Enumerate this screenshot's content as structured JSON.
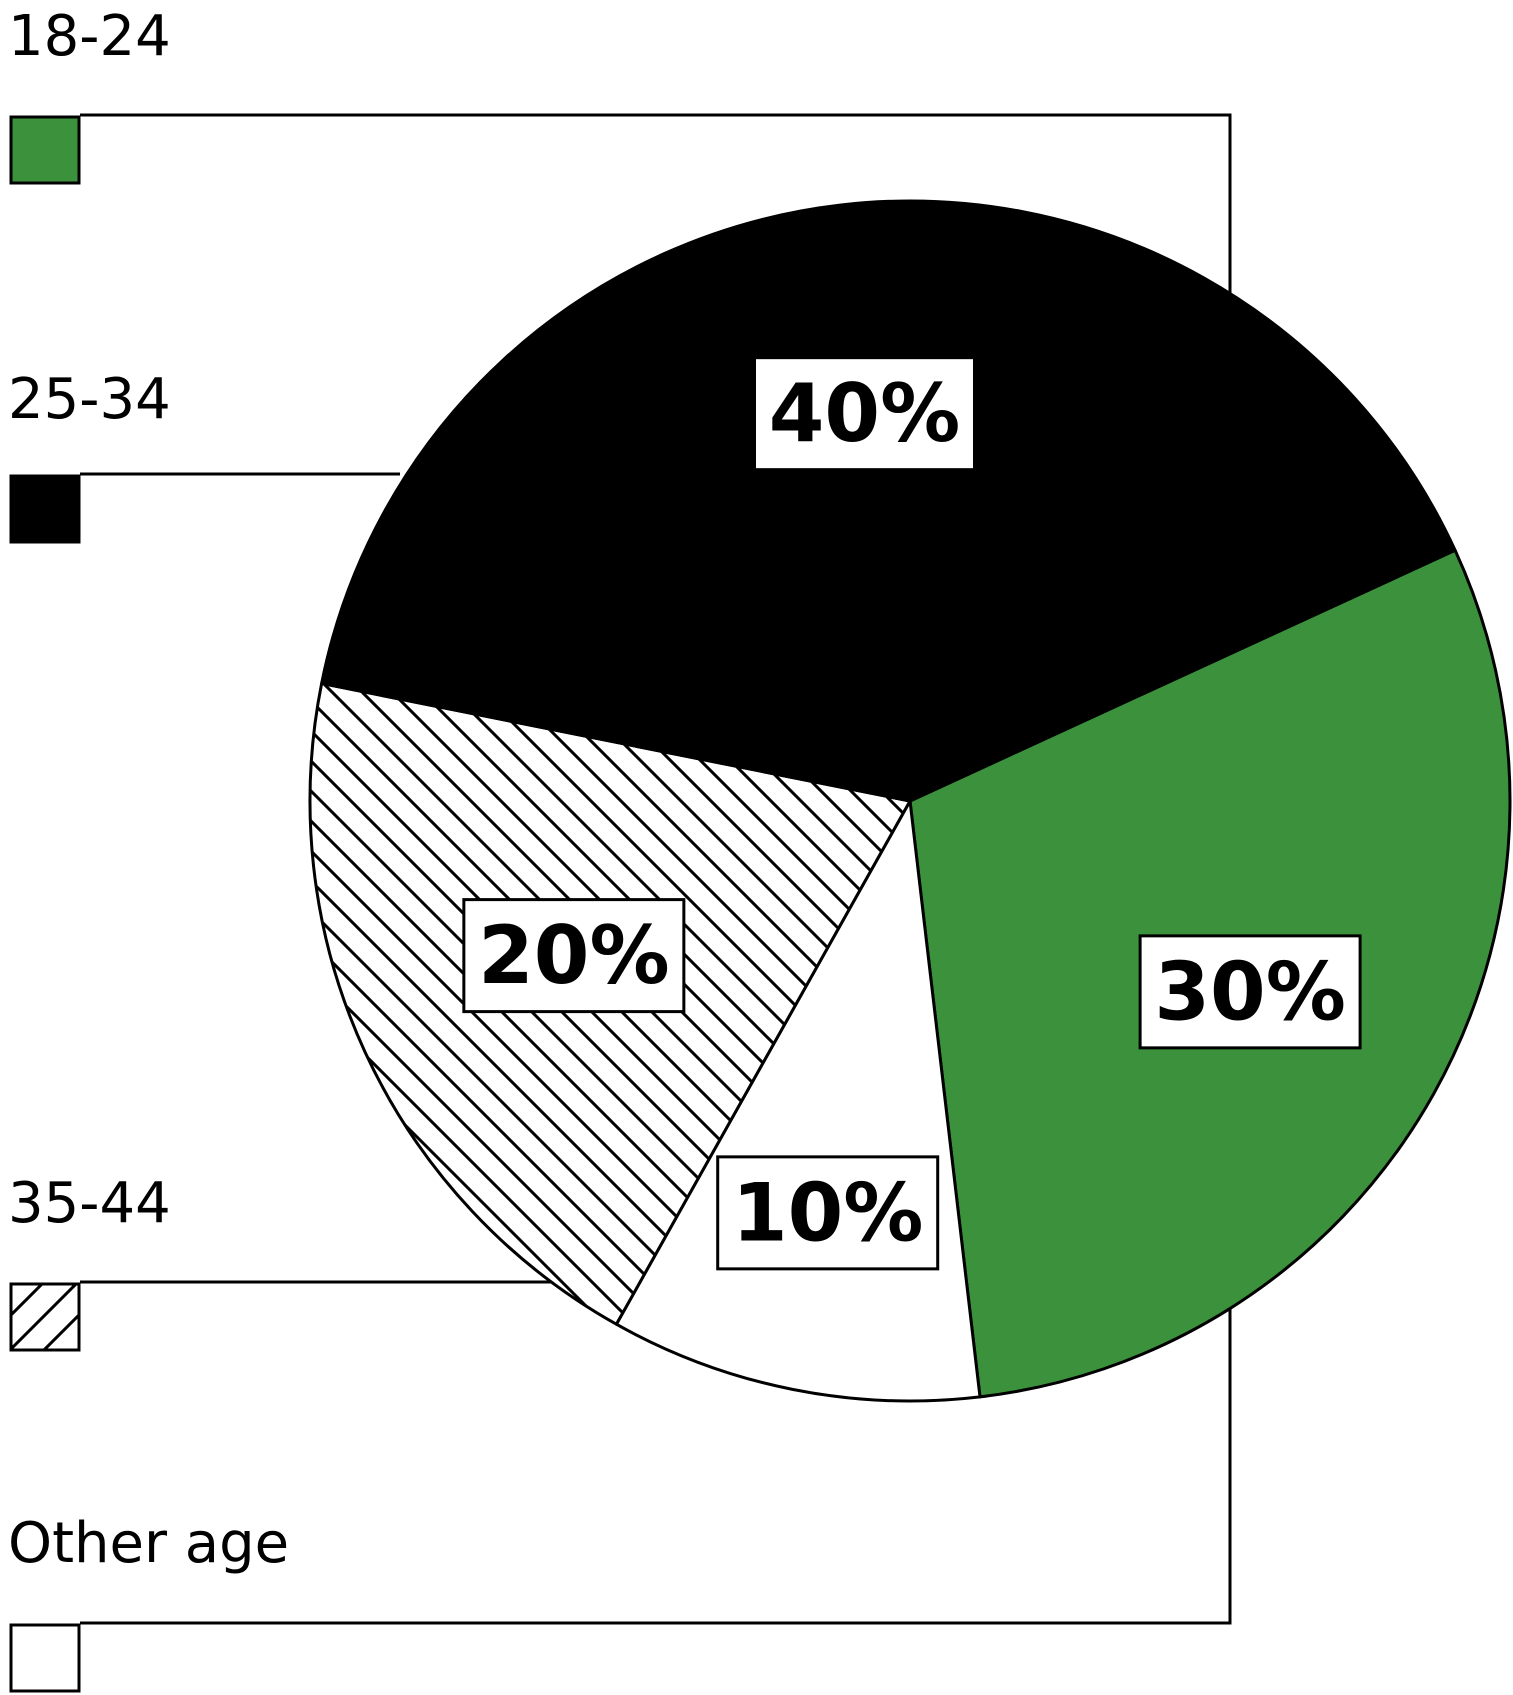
{
  "chart_data": {
    "type": "pie",
    "categories": [
      "18-24",
      "25-34",
      "35-44",
      "Other age"
    ],
    "values": [
      30,
      40,
      20,
      10
    ],
    "unit": "%",
    "data_labels": [
      "30%",
      "40%",
      "20%",
      "10%"
    ],
    "title": "",
    "legend_placement": "left",
    "slice_styles": [
      {
        "category": "18-24",
        "fill": "#3c923c",
        "pattern": "solid"
      },
      {
        "category": "25-34",
        "fill": "#000000",
        "pattern": "solid"
      },
      {
        "category": "35-44",
        "fill": "#ffffff",
        "pattern": "diagonal-hatch"
      },
      {
        "category": "Other age",
        "fill": "#ffffff",
        "pattern": "solid"
      }
    ]
  }
}
